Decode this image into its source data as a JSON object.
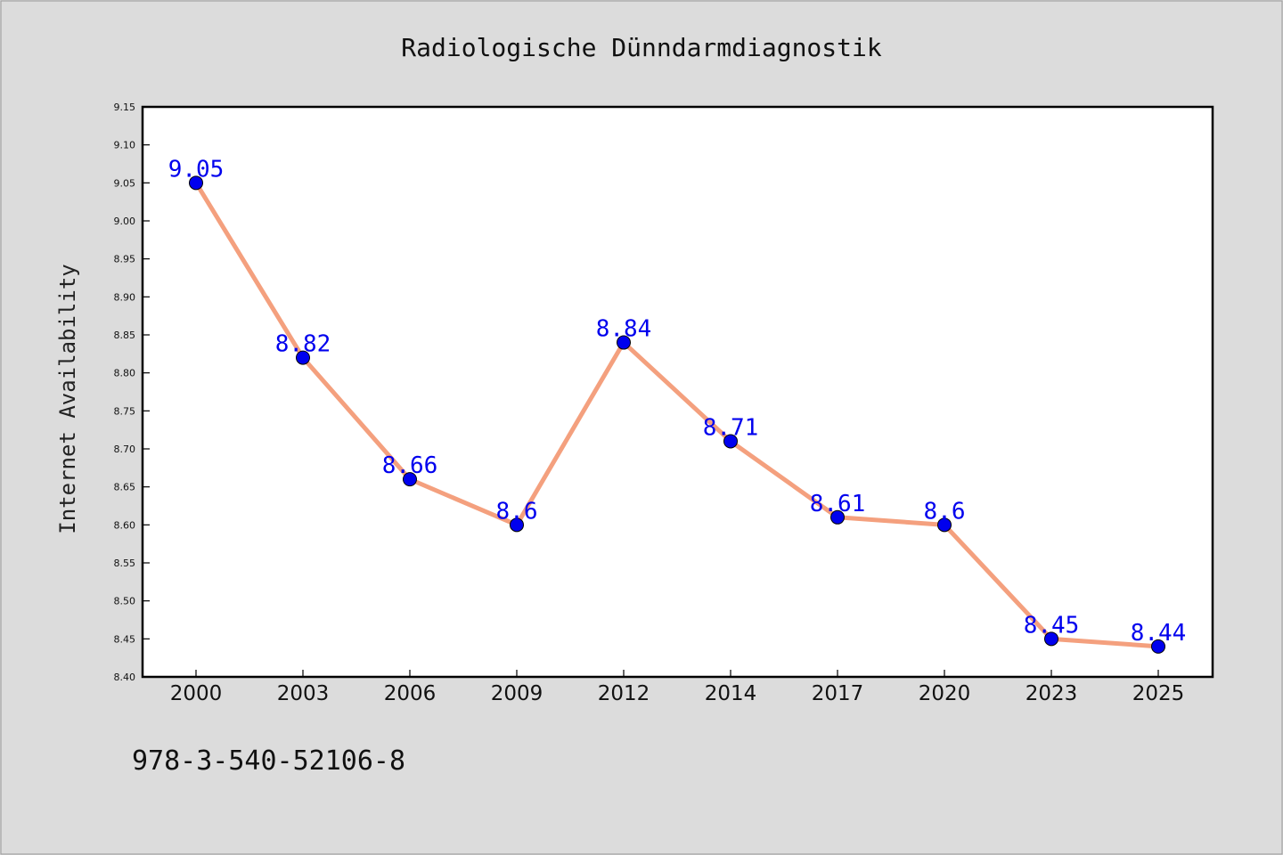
{
  "chart_data": {
    "type": "line",
    "title": "Radiologische Dünndarmdiagnostik",
    "xlabel": "",
    "ylabel": "Internet Availability",
    "categories": [
      "2000",
      "2003",
      "2006",
      "2009",
      "2012",
      "2014",
      "2017",
      "2020",
      "2023",
      "2025"
    ],
    "series": [
      {
        "values": [
          9.05,
          8.82,
          8.66,
          8.6,
          8.84,
          8.71,
          8.61,
          8.6,
          8.45,
          8.44
        ],
        "labels": [
          "9.05",
          "8.82",
          "8.66",
          "8.6",
          "8.84",
          "8.71",
          "8.61",
          "8.6",
          "8.45",
          "8.44"
        ]
      }
    ],
    "ylim": [
      8.4,
      9.15
    ],
    "yticks": [
      "8.40",
      "8.45",
      "8.50",
      "8.55",
      "8.60",
      "8.65",
      "8.70",
      "8.75",
      "8.80",
      "8.85",
      "8.90",
      "8.95",
      "9.00",
      "9.05",
      "9.10",
      "9.15"
    ],
    "grid": false,
    "legend": "none",
    "colors": {
      "line": "#f4a07e",
      "marker": "#0000ee",
      "label": "#0000ee",
      "plot_bg": "#ffffff",
      "figure_bg": "#dcdcdc"
    }
  },
  "footnote": "978-3-540-52106-8"
}
